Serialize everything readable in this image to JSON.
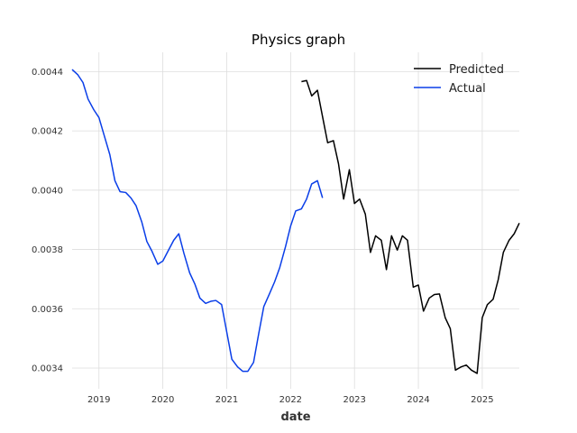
{
  "chart_data": {
    "type": "line",
    "title": "Physics graph",
    "xlabel": "date",
    "ylabel": "",
    "grid": true,
    "legend_position": "top-right",
    "xlim": [
      2018.58,
      2025.58
    ],
    "ylim": [
      0.00333,
      0.004465
    ],
    "xticks": [
      2019,
      2020,
      2021,
      2022,
      2023,
      2024,
      2025
    ],
    "xtick_labels": [
      "2019",
      "2020",
      "2021",
      "2022",
      "2023",
      "2024",
      "2025"
    ],
    "yticks": [
      0.0034,
      0.0036,
      0.0038,
      0.004,
      0.0042,
      0.0044
    ],
    "ytick_labels": [
      "0.0034",
      "0.0036",
      "0.0038",
      "0.0040",
      "0.0042",
      "0.0044"
    ],
    "series": [
      {
        "name": "Predicted",
        "color": "#000000",
        "points": [
          [
            2022.17,
            0.004366
          ],
          [
            2022.25,
            0.00437
          ],
          [
            2022.33,
            0.004318
          ],
          [
            2022.42,
            0.004337
          ],
          [
            2022.5,
            0.004248
          ],
          [
            2022.58,
            0.00416
          ],
          [
            2022.67,
            0.004167
          ],
          [
            2022.75,
            0.004089
          ],
          [
            2022.83,
            0.00397
          ],
          [
            2022.92,
            0.004069
          ],
          [
            2023.0,
            0.003955
          ],
          [
            2023.08,
            0.00397
          ],
          [
            2023.17,
            0.003919
          ],
          [
            2023.25,
            0.00379
          ],
          [
            2023.33,
            0.003846
          ],
          [
            2023.42,
            0.003831
          ],
          [
            2023.5,
            0.003732
          ],
          [
            2023.58,
            0.003846
          ],
          [
            2023.67,
            0.003798
          ],
          [
            2023.75,
            0.003846
          ],
          [
            2023.83,
            0.003831
          ],
          [
            2023.92,
            0.003673
          ],
          [
            2024.0,
            0.00368
          ],
          [
            2024.08,
            0.003592
          ],
          [
            2024.17,
            0.003636
          ],
          [
            2024.25,
            0.003648
          ],
          [
            2024.33,
            0.00365
          ],
          [
            2024.42,
            0.00357
          ],
          [
            2024.5,
            0.003533
          ],
          [
            2024.58,
            0.003393
          ],
          [
            2024.67,
            0.003404
          ],
          [
            2024.75,
            0.00341
          ],
          [
            2024.83,
            0.003393
          ],
          [
            2024.92,
            0.003382
          ],
          [
            2025.0,
            0.00357
          ],
          [
            2025.08,
            0.003614
          ],
          [
            2025.17,
            0.003632
          ],
          [
            2025.25,
            0.003698
          ],
          [
            2025.33,
            0.00379
          ],
          [
            2025.42,
            0.003831
          ],
          [
            2025.5,
            0.003853
          ],
          [
            2025.58,
            0.003889
          ]
        ]
      },
      {
        "name": "Actual",
        "color": "#0a3ee8",
        "points": [
          [
            2018.58,
            0.004407
          ],
          [
            2018.67,
            0.004389
          ],
          [
            2018.75,
            0.004363
          ],
          [
            2018.83,
            0.004307
          ],
          [
            2018.92,
            0.004271
          ],
          [
            2019.0,
            0.004245
          ],
          [
            2019.08,
            0.004186
          ],
          [
            2019.17,
            0.00412
          ],
          [
            2019.25,
            0.004032
          ],
          [
            2019.33,
            0.003995
          ],
          [
            2019.42,
            0.003992
          ],
          [
            2019.5,
            0.003974
          ],
          [
            2019.58,
            0.003948
          ],
          [
            2019.67,
            0.003893
          ],
          [
            2019.75,
            0.003827
          ],
          [
            2019.83,
            0.003794
          ],
          [
            2019.92,
            0.00375
          ],
          [
            2020.0,
            0.003761
          ],
          [
            2020.08,
            0.003794
          ],
          [
            2020.17,
            0.003831
          ],
          [
            2020.25,
            0.003853
          ],
          [
            2020.33,
            0.003787
          ],
          [
            2020.42,
            0.003721
          ],
          [
            2020.5,
            0.003684
          ],
          [
            2020.58,
            0.003636
          ],
          [
            2020.67,
            0.003618
          ],
          [
            2020.75,
            0.003625
          ],
          [
            2020.83,
            0.003628
          ],
          [
            2020.92,
            0.003614
          ],
          [
            2021.0,
            0.003522
          ],
          [
            2021.08,
            0.00343
          ],
          [
            2021.17,
            0.003404
          ],
          [
            2021.25,
            0.003389
          ],
          [
            2021.33,
            0.003389
          ],
          [
            2021.42,
            0.003419
          ],
          [
            2021.5,
            0.003515
          ],
          [
            2021.58,
            0.003607
          ],
          [
            2021.67,
            0.003651
          ],
          [
            2021.75,
            0.003691
          ],
          [
            2021.83,
            0.003739
          ],
          [
            2021.92,
            0.003809
          ],
          [
            2022.0,
            0.003879
          ],
          [
            2022.08,
            0.00393
          ],
          [
            2022.17,
            0.003937
          ],
          [
            2022.25,
            0.00397
          ],
          [
            2022.33,
            0.004021
          ],
          [
            2022.42,
            0.004032
          ],
          [
            2022.5,
            0.003974
          ]
        ]
      }
    ]
  }
}
